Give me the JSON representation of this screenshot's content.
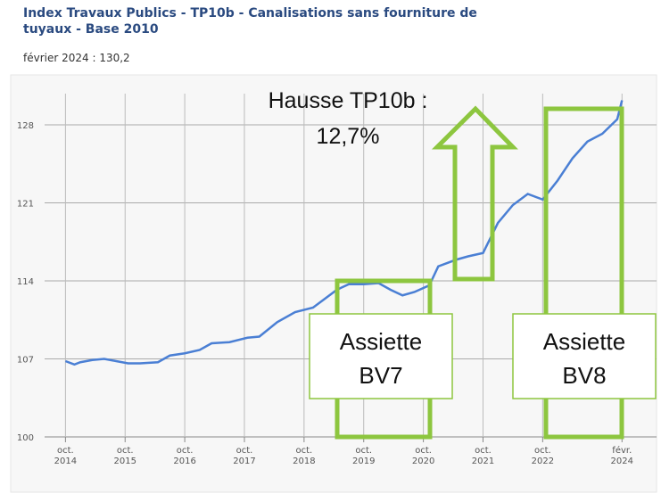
{
  "chart_data": {
    "type": "line",
    "title": "Index Travaux Publics - TP10b - Canalisations sans fourniture de tuyaux - Base 2010",
    "subtitle": "février 2024 : 130,2",
    "x": [
      2014.75,
      2014.9,
      2015.0,
      2015.2,
      2015.4,
      2015.6,
      2015.8,
      2016.0,
      2016.3,
      2016.5,
      2016.75,
      2017.0,
      2017.2,
      2017.5,
      2017.8,
      2018.0,
      2018.3,
      2018.6,
      2018.9,
      2019.1,
      2019.3,
      2019.5,
      2019.75,
      2020.0,
      2020.2,
      2020.4,
      2020.6,
      2020.85,
      2021.0,
      2021.3,
      2021.5,
      2021.75,
      2022.0,
      2022.25,
      2022.5,
      2022.75,
      2023.0,
      2023.25,
      2023.5,
      2023.75,
      2024.0,
      2024.08
    ],
    "series": [
      {
        "name": "TP10b",
        "color": "#4a7fd4",
        "values": [
          106.8,
          106.5,
          106.7,
          106.9,
          107.0,
          106.8,
          106.6,
          106.6,
          106.7,
          107.3,
          107.5,
          107.8,
          108.4,
          108.5,
          108.9,
          109.0,
          110.3,
          111.2,
          111.6,
          112.4,
          113.2,
          113.7,
          113.7,
          113.8,
          113.2,
          112.7,
          113.0,
          113.6,
          115.3,
          115.9,
          116.2,
          116.5,
          119.2,
          120.8,
          121.8,
          121.3,
          123.0,
          125.0,
          126.5,
          127.2,
          128.5,
          130.2
        ]
      }
    ],
    "xlim": [
      2014.55,
      2024.3
    ],
    "xticks": [
      {
        "value": 2014.75,
        "label": "oct. 2014"
      },
      {
        "value": 2015.75,
        "label": "oct. 2015"
      },
      {
        "value": 2016.75,
        "label": "oct. 2016"
      },
      {
        "value": 2017.75,
        "label": "oct. 2017"
      },
      {
        "value": 2018.75,
        "label": "oct. 2018"
      },
      {
        "value": 2019.75,
        "label": "oct. 2019"
      },
      {
        "value": 2020.75,
        "label": "oct. 2020"
      },
      {
        "value": 2021.75,
        "label": "oct. 2021"
      },
      {
        "value": 2022.75,
        "label": "oct. 2022"
      },
      {
        "value": 2024.08,
        "label": "févr. 2024"
      }
    ],
    "ylim": [
      100,
      131.6
    ],
    "yticks": [
      100,
      107,
      114,
      121,
      128
    ],
    "grid": true
  },
  "annotations": {
    "rise": [
      "Hausse TP10b :",
      "12,7%"
    ],
    "bv7": [
      "Assiette",
      "BV7"
    ],
    "bv8": [
      "Assiette",
      "BV8"
    ]
  }
}
